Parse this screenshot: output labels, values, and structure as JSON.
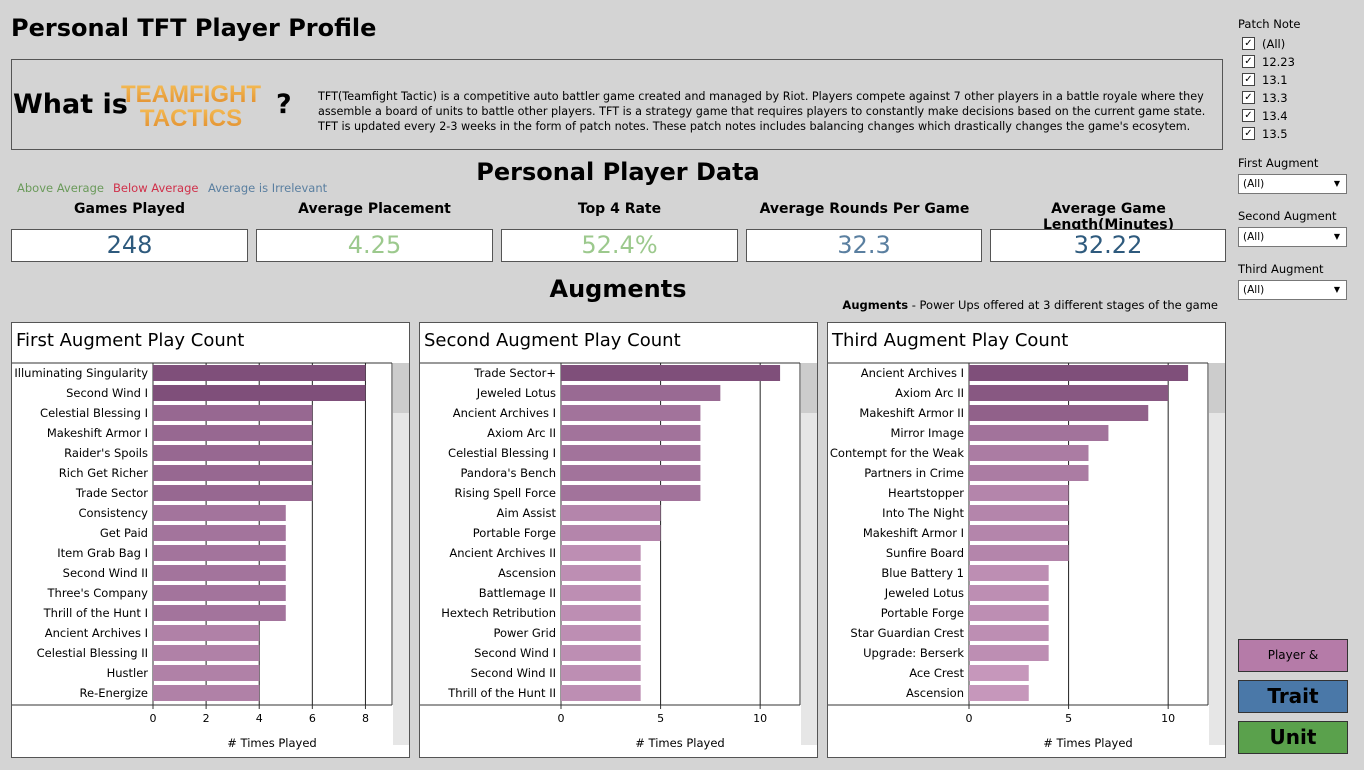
{
  "page": {
    "title": "Personal TFT Player Profile",
    "whatis_label": "What is",
    "logo": {
      "line1": "TEAMFIGHT",
      "line2": "TACTICS"
    },
    "qmark": "?",
    "description": "TFT(Teamfight Tactic) is a competitive auto battler game created and managed by Riot. Players compete against 7 other players in a battle royale where they assemble a board of units to battle other players. TFT is a strategy game that requires players to constantly make decisions based on the current game state. TFT is updated every 2-3 weeks in the form of patch notes. These patch notes includes balancing changes which drastically changes the game's ecosytem."
  },
  "player_section": {
    "title": "Personal Player Data",
    "legend": [
      {
        "label": "Above Average",
        "color": "#6a9a5a"
      },
      {
        "label": "Below Average",
        "color": "#d0304a"
      },
      {
        "label": "Average is Irrelevant",
        "color": "#5a7fa0"
      }
    ],
    "kpis": [
      {
        "label": "Games Played",
        "value": "248",
        "color": "#2e5a7d"
      },
      {
        "label": "Average Placement",
        "value": "4.25",
        "color": "#9cc98d"
      },
      {
        "label": "Top 4 Rate",
        "value": "52.4%",
        "color": "#9cc98d"
      },
      {
        "label": "Average Rounds Per Game",
        "value": "32.3",
        "color": "#5a7fa0"
      },
      {
        "label": "Average Game Length(Minutes)",
        "value": "32.22",
        "color": "#2e5a7d"
      }
    ]
  },
  "augments_section": {
    "title": "Augments",
    "note_bold": "Augments",
    "note_rest": " - Power Ups offered at 3 different stages of the game"
  },
  "chart_data": [
    {
      "type": "bar",
      "title": "First Augment Play Count",
      "xlabel": "# Times Played",
      "xlim": [
        0,
        9
      ],
      "ticks": [
        0,
        2,
        4,
        6,
        8
      ],
      "categories": [
        "Illuminating Singularity",
        "Second Wind I",
        "Celestial Blessing I",
        "Makeshift Armor I",
        "Raider's Spoils",
        "Rich Get Richer",
        "Trade Sector",
        "Consistency",
        "Get Paid",
        "Item Grab Bag I",
        "Second Wind II",
        "Three's Company",
        "Thrill of the Hunt I",
        "Ancient Archives I",
        "Celestial Blessing II",
        "Hustler",
        "Re-Energize"
      ],
      "values": [
        8,
        8,
        6,
        6,
        6,
        6,
        6,
        5,
        5,
        5,
        5,
        5,
        5,
        4,
        4,
        4,
        4
      ]
    },
    {
      "type": "bar",
      "title": "Second Augment Play Count",
      "xlabel": "# Times Played",
      "xlim": [
        0,
        12
      ],
      "ticks": [
        0,
        5,
        10
      ],
      "categories": [
        "Trade Sector+",
        "Jeweled Lotus",
        "Ancient Archives I",
        "Axiom Arc II",
        "Celestial Blessing I",
        "Pandora's Bench",
        "Rising Spell Force",
        "Aim Assist",
        "Portable Forge",
        "Ancient Archives II",
        "Ascension",
        "Battlemage II",
        "Hextech Retribution",
        "Power Grid",
        "Second Wind I",
        "Second Wind II",
        "Thrill of the Hunt II"
      ],
      "values": [
        11,
        8,
        7,
        7,
        7,
        7,
        7,
        5,
        5,
        4,
        4,
        4,
        4,
        4,
        4,
        4,
        4
      ]
    },
    {
      "type": "bar",
      "title": "Third Augment Play Count",
      "xlabel": "# Times Played",
      "xlim": [
        0,
        12
      ],
      "ticks": [
        0,
        5,
        10
      ],
      "categories": [
        "Ancient Archives I",
        "Axiom Arc II",
        "Makeshift Armor II",
        "Mirror Image",
        "Contempt for the Weak",
        "Partners in Crime",
        "Heartstopper",
        "Into The Night",
        "Makeshift Armor I",
        "Sunfire Board",
        "Blue Battery 1",
        "Jeweled Lotus",
        "Portable Forge",
        "Star Guardian Crest",
        "Upgrade: Berserk",
        "Ace Crest",
        "Ascension"
      ],
      "values": [
        11,
        10,
        9,
        7,
        6,
        6,
        5,
        5,
        5,
        5,
        4,
        4,
        4,
        4,
        4,
        3,
        3
      ]
    }
  ],
  "sidebar": {
    "patch_label": "Patch Note",
    "patches": [
      "(All)",
      "12.23",
      "13.1",
      "13.3",
      "13.4",
      "13.5"
    ],
    "check_mark": "✓",
    "filters": [
      {
        "label": "First Augment",
        "value": "(All)"
      },
      {
        "label": "Second Augment",
        "value": "(All)"
      },
      {
        "label": "Third Augment",
        "value": "(All)"
      }
    ],
    "arrow": "▼",
    "buttons": [
      {
        "label": "Player & Augment",
        "color": "#b57ba8"
      },
      {
        "label": "Trait",
        "color": "#4a78a8"
      },
      {
        "label": "Unit",
        "color": "#5aa14c"
      }
    ]
  }
}
